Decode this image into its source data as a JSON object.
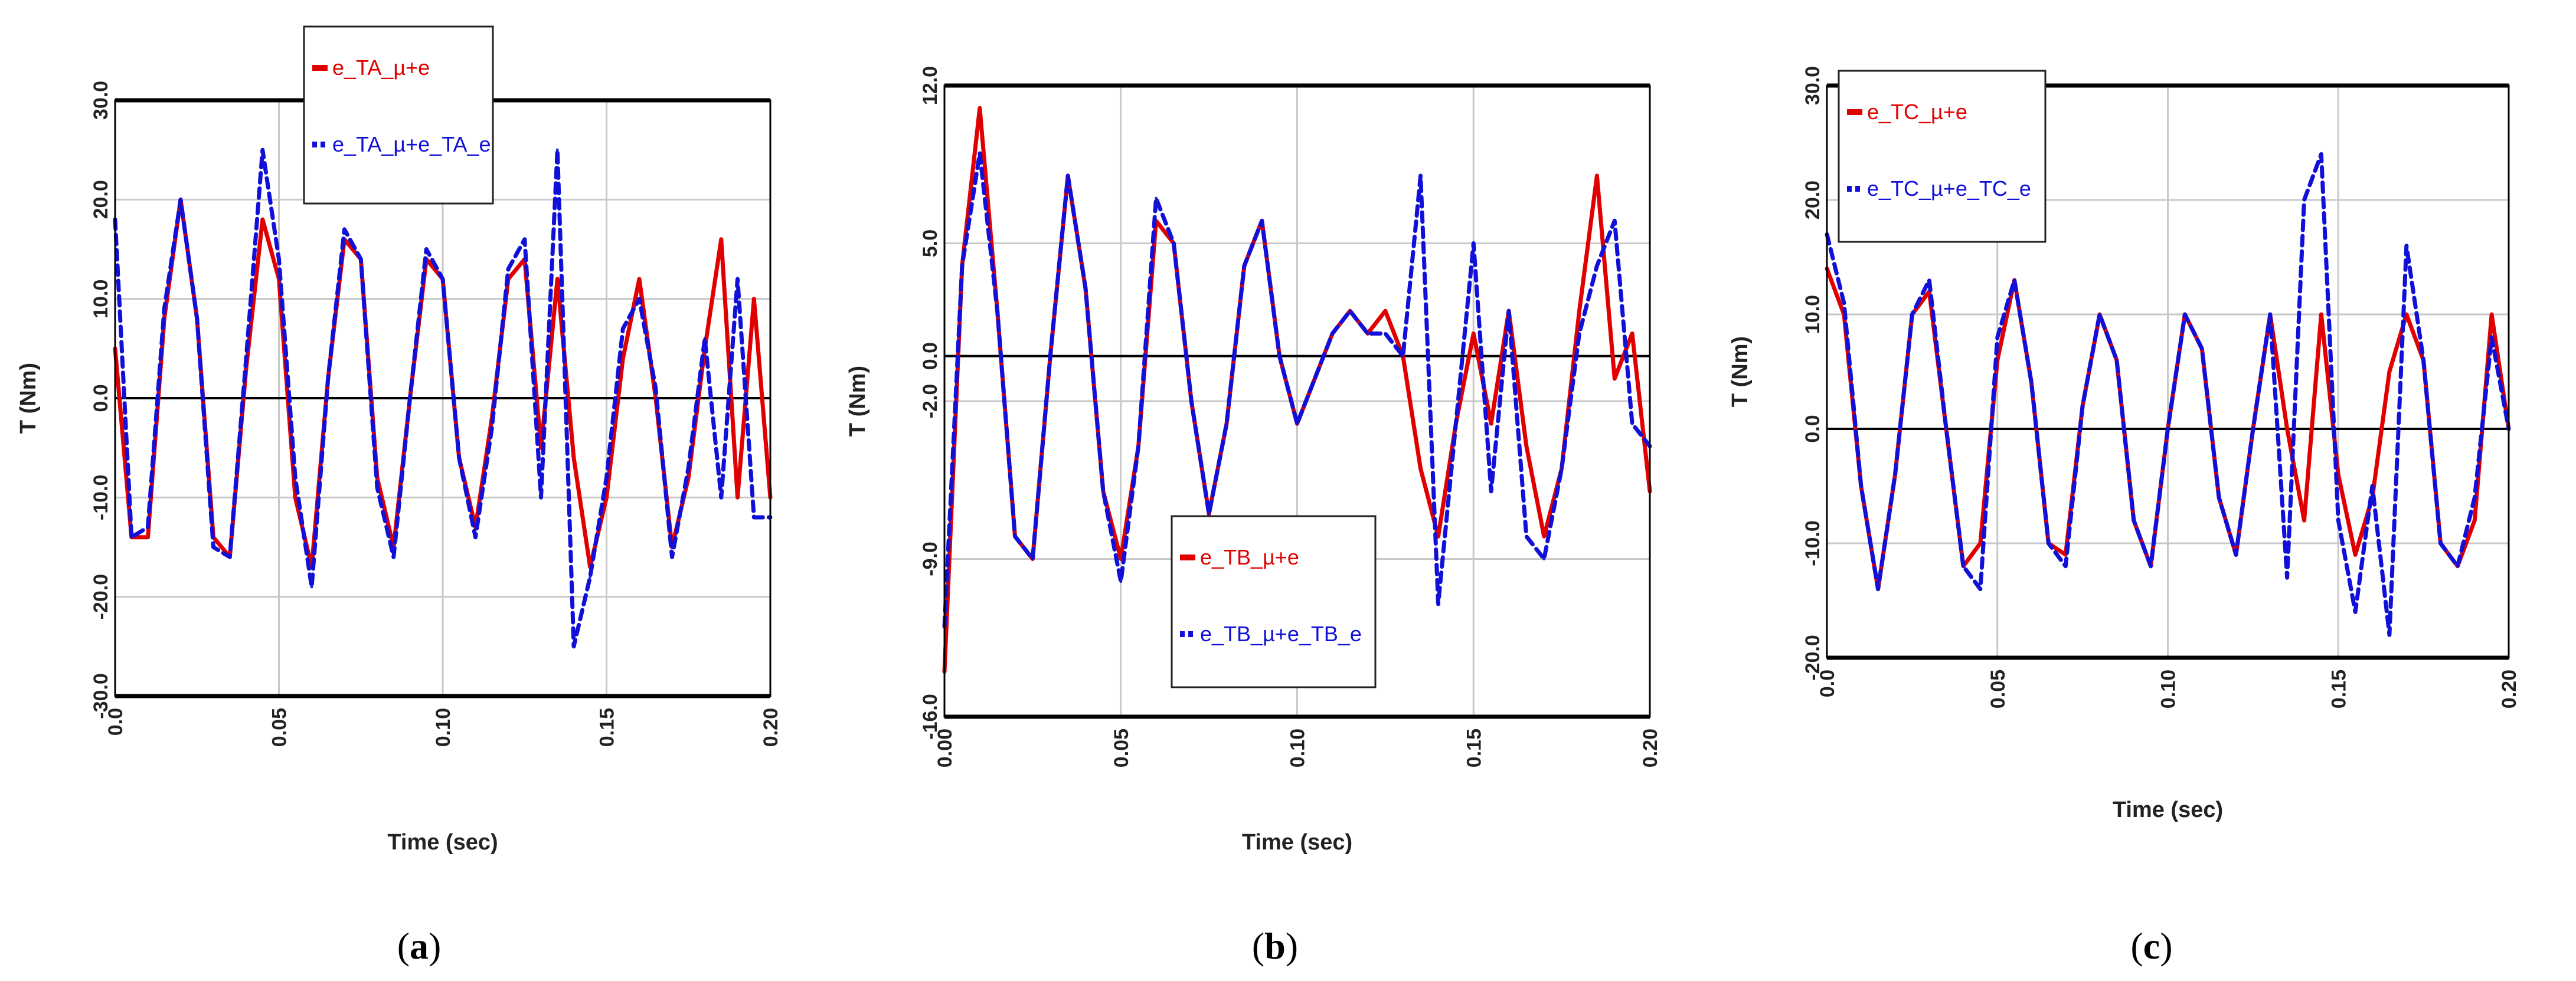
{
  "colors": {
    "red": "#e00000",
    "blue": "#1010d8",
    "grid": "#c8c8c8",
    "frame": "#000000"
  },
  "chart_data": [
    {
      "type": "line",
      "caption": "a",
      "ylabel": "T (Nm)",
      "xlabel": "Time (sec)",
      "xlim": [
        0,
        0.2
      ],
      "ylim": [
        -30,
        30
      ],
      "x_ticks": [
        "0.0",
        "0.05",
        "0.10",
        "0.15",
        "0.20"
      ],
      "x_ticks_val": [
        0,
        0.05,
        0.1,
        0.15,
        0.2
      ],
      "y_ticks": [
        "30.0",
        "20.0",
        "10.0",
        "0.0",
        "-10.0",
        "-20.0",
        "-30.0"
      ],
      "y_ticks_val": [
        30,
        20,
        10,
        0,
        -10,
        -20,
        -30
      ],
      "legend": {
        "position": "top-center",
        "entries": [
          "e_TA_µ+e",
          "e_TA_µ+e_TA_e"
        ]
      },
      "series": [
        {
          "name": "e_TA_µ+e",
          "color": "red",
          "style": "solid",
          "x": [
            0,
            0.005,
            0.01,
            0.015,
            0.02,
            0.025,
            0.03,
            0.035,
            0.04,
            0.045,
            0.05,
            0.055,
            0.06,
            0.065,
            0.07,
            0.075,
            0.08,
            0.085,
            0.09,
            0.095,
            0.1,
            0.105,
            0.11,
            0.115,
            0.12,
            0.125,
            0.13,
            0.135,
            0.14,
            0.145,
            0.15,
            0.155,
            0.16,
            0.165,
            0.17,
            0.175,
            0.18,
            0.185,
            0.19,
            0.195,
            0.2
          ],
          "y": [
            5,
            -14,
            -14,
            8,
            20,
            8,
            -14,
            -16,
            3,
            18,
            12,
            -10,
            -17,
            2,
            16,
            14,
            -8,
            -15,
            0,
            14,
            12,
            -6,
            -13,
            -2,
            12,
            14,
            -5,
            12,
            -6,
            -17,
            -10,
            4,
            12,
            0,
            -15,
            -8,
            5,
            16,
            -10,
            10,
            -10
          ]
        },
        {
          "name": "e_TA_µ+e_TA_e",
          "color": "blue",
          "style": "dashed",
          "x": [
            0,
            0.005,
            0.01,
            0.015,
            0.02,
            0.025,
            0.03,
            0.035,
            0.04,
            0.045,
            0.05,
            0.055,
            0.06,
            0.065,
            0.07,
            0.075,
            0.08,
            0.085,
            0.09,
            0.095,
            0.1,
            0.105,
            0.11,
            0.115,
            0.12,
            0.125,
            0.13,
            0.135,
            0.14,
            0.145,
            0.15,
            0.155,
            0.16,
            0.165,
            0.17,
            0.175,
            0.18,
            0.185,
            0.19,
            0.195,
            0.2
          ],
          "y": [
            18,
            -14,
            -13,
            9,
            20,
            8,
            -15,
            -16,
            4,
            25,
            14,
            -8,
            -19,
            2,
            17,
            14,
            -9,
            -16,
            0,
            15,
            12,
            -6,
            -14,
            -3,
            13,
            16,
            -10,
            25,
            -25,
            -18,
            -8,
            7,
            10,
            1,
            -16,
            -7,
            6,
            -10,
            12,
            -12,
            -12
          ]
        }
      ]
    },
    {
      "type": "line",
      "caption": "b",
      "ylabel": "T (Nm)",
      "xlabel": "Time (sec)",
      "xlim": [
        0,
        0.2
      ],
      "ylim": [
        -16,
        12
      ],
      "x_ticks": [
        "0.00",
        "0.05",
        "0.10",
        "0.15",
        "0.20"
      ],
      "x_ticks_val": [
        0,
        0.05,
        0.1,
        0.15,
        0.2
      ],
      "y_ticks": [
        "12.0",
        "5.0",
        "0.0",
        "-2.0",
        "-9.0",
        "-16.0"
      ],
      "y_ticks_val": [
        12,
        5,
        0,
        -2,
        -9,
        -16
      ],
      "legend": {
        "position": "bottom-center",
        "entries": [
          "e_TB_µ+e",
          "e_TB_µ+e_TB_e"
        ]
      },
      "series": [
        {
          "name": "e_TB_µ+e",
          "color": "red",
          "style": "solid",
          "x": [
            0,
            0.005,
            0.01,
            0.015,
            0.02,
            0.025,
            0.03,
            0.035,
            0.04,
            0.045,
            0.05,
            0.055,
            0.06,
            0.065,
            0.07,
            0.075,
            0.08,
            0.085,
            0.09,
            0.095,
            0.1,
            0.105,
            0.11,
            0.115,
            0.12,
            0.125,
            0.13,
            0.135,
            0.14,
            0.145,
            0.15,
            0.155,
            0.16,
            0.165,
            0.17,
            0.175,
            0.18,
            0.185,
            0.19,
            0.195,
            0.2
          ],
          "y": [
            -14,
            4,
            11,
            2,
            -8,
            -9,
            0,
            8,
            3,
            -6,
            -9,
            -4,
            6,
            5,
            -2,
            -7,
            -3,
            4,
            6,
            0,
            -3,
            -1,
            1,
            2,
            1,
            2,
            0,
            -5,
            -8,
            -3,
            1,
            -3,
            2,
            -4,
            -8,
            -5,
            2,
            8,
            -1,
            1,
            -6
          ]
        },
        {
          "name": "e_TB_µ+e_TB_e",
          "color": "blue",
          "style": "dashed",
          "x": [
            0,
            0.005,
            0.01,
            0.015,
            0.02,
            0.025,
            0.03,
            0.035,
            0.04,
            0.045,
            0.05,
            0.055,
            0.06,
            0.065,
            0.07,
            0.075,
            0.08,
            0.085,
            0.09,
            0.095,
            0.1,
            0.105,
            0.11,
            0.115,
            0.12,
            0.125,
            0.13,
            0.135,
            0.14,
            0.145,
            0.15,
            0.155,
            0.16,
            0.165,
            0.17,
            0.175,
            0.18,
            0.185,
            0.19,
            0.195,
            0.2
          ],
          "y": [
            -12,
            4,
            9,
            2,
            -8,
            -9,
            0,
            8,
            3,
            -6,
            -10,
            -4,
            7,
            5,
            -2,
            -7,
            -3,
            4,
            6,
            0,
            -3,
            -1,
            1,
            2,
            1,
            1,
            0,
            8,
            -11,
            -3,
            5,
            -6,
            2,
            -8,
            -9,
            -5,
            1,
            4,
            6,
            -3,
            -4
          ]
        }
      ]
    },
    {
      "type": "line",
      "caption": "c",
      "ylabel": "T (Nm)",
      "xlabel": "Time (sec)",
      "xlim": [
        0,
        0.2
      ],
      "ylim": [
        -20,
        30
      ],
      "x_ticks": [
        "0.0",
        "0.05",
        "0.10",
        "0.15",
        "0.20"
      ],
      "x_ticks_val": [
        0,
        0.05,
        0.1,
        0.15,
        0.2
      ],
      "y_ticks": [
        "30.0",
        "20.0",
        "10.0",
        "0.0",
        "-10.0",
        "-20.0"
      ],
      "y_ticks_val": [
        30,
        20,
        10,
        0,
        -10,
        -20
      ],
      "legend": {
        "position": "top-left",
        "entries": [
          "e_TC_µ+e",
          "e_TC_µ+e_TC_e"
        ]
      },
      "series": [
        {
          "name": "e_TC_µ+e",
          "color": "red",
          "style": "solid",
          "x": [
            0,
            0.005,
            0.01,
            0.015,
            0.02,
            0.025,
            0.03,
            0.035,
            0.04,
            0.045,
            0.05,
            0.055,
            0.06,
            0.065,
            0.07,
            0.075,
            0.08,
            0.085,
            0.09,
            0.095,
            0.1,
            0.105,
            0.11,
            0.115,
            0.12,
            0.125,
            0.13,
            0.135,
            0.14,
            0.145,
            0.15,
            0.155,
            0.16,
            0.165,
            0.17,
            0.175,
            0.18,
            0.185,
            0.19,
            0.195,
            0.2
          ],
          "y": [
            14,
            10,
            -5,
            -14,
            -4,
            10,
            12,
            0,
            -12,
            -10,
            6,
            13,
            4,
            -10,
            -11,
            2,
            10,
            6,
            -8,
            -12,
            0,
            10,
            7,
            -6,
            -11,
            0,
            10,
            0,
            -8,
            10,
            -4,
            -11,
            -6,
            5,
            10,
            6,
            -10,
            -12,
            -8,
            10,
            0
          ]
        },
        {
          "name": "e_TC_µ+e_TC_e",
          "color": "blue",
          "style": "dashed",
          "x": [
            0,
            0.005,
            0.01,
            0.015,
            0.02,
            0.025,
            0.03,
            0.035,
            0.04,
            0.045,
            0.05,
            0.055,
            0.06,
            0.065,
            0.07,
            0.075,
            0.08,
            0.085,
            0.09,
            0.095,
            0.1,
            0.105,
            0.11,
            0.115,
            0.12,
            0.125,
            0.13,
            0.135,
            0.14,
            0.145,
            0.15,
            0.155,
            0.16,
            0.165,
            0.17,
            0.175,
            0.18,
            0.185,
            0.19,
            0.195,
            0.2
          ],
          "y": [
            17,
            11,
            -5,
            -14,
            -4,
            10,
            13,
            0,
            -12,
            -14,
            8,
            13,
            4,
            -10,
            -12,
            2,
            10,
            6,
            -8,
            -12,
            0,
            10,
            7,
            -6,
            -11,
            0,
            10,
            -13,
            20,
            24,
            -8,
            -16,
            -5,
            -18,
            16,
            6,
            -10,
            -12,
            -6,
            8,
            0
          ]
        }
      ]
    }
  ]
}
